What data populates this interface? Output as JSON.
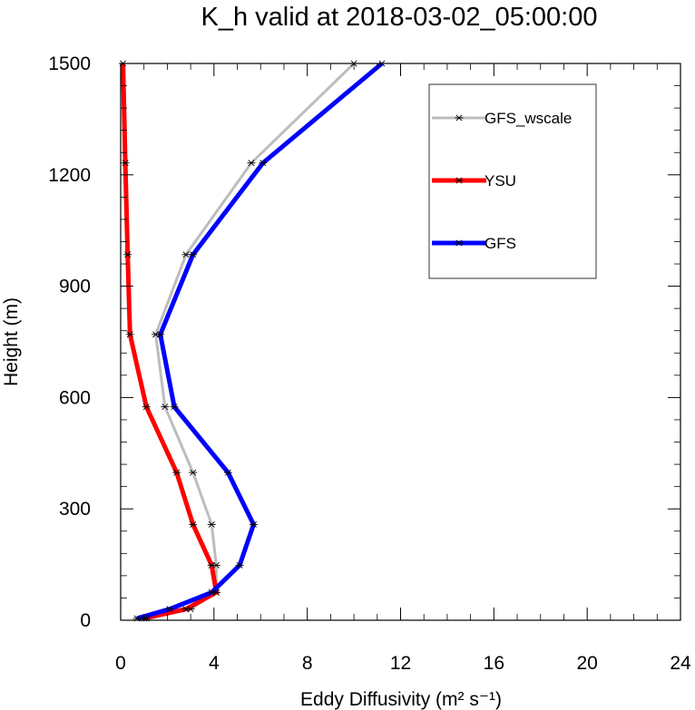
{
  "chart_data": {
    "type": "line",
    "title": "K_h valid at 2018-03-02_05:00:00",
    "xlabel": "Eddy Diffusivity (m² s⁻¹)",
    "ylabel": "Height (m)",
    "xlim": [
      0,
      24
    ],
    "ylim": [
      0,
      1500
    ],
    "xticks": [
      0,
      4,
      8,
      12,
      16,
      20,
      24
    ],
    "yticks": [
      0,
      300,
      600,
      900,
      1200,
      1500
    ],
    "grid": false,
    "legend_position": "top-right",
    "series": [
      {
        "name": "GFS_wscale",
        "color": "#bdbdbd",
        "marker": "asterisk",
        "points": [
          [
            1.1,
            5
          ],
          [
            3.0,
            30
          ],
          [
            4.1,
            75
          ],
          [
            4.1,
            148
          ],
          [
            3.9,
            258
          ],
          [
            3.1,
            398
          ],
          [
            1.9,
            575
          ],
          [
            1.5,
            770
          ],
          [
            2.8,
            985
          ],
          [
            5.6,
            1232
          ],
          [
            10.0,
            1500
          ]
        ]
      },
      {
        "name": "YSU",
        "color": "#ff0000",
        "marker": "asterisk",
        "points": [
          [
            1.0,
            5
          ],
          [
            2.8,
            30
          ],
          [
            4.1,
            75
          ],
          [
            3.9,
            148
          ],
          [
            3.1,
            258
          ],
          [
            2.4,
            398
          ],
          [
            1.1,
            575
          ],
          [
            0.4,
            770
          ],
          [
            0.3,
            985
          ],
          [
            0.2,
            1232
          ],
          [
            0.1,
            1500
          ]
        ]
      },
      {
        "name": "GFS",
        "color": "#0000ff",
        "marker": "asterisk",
        "points": [
          [
            0.7,
            5
          ],
          [
            2.1,
            30
          ],
          [
            3.9,
            75
          ],
          [
            5.1,
            148
          ],
          [
            5.7,
            258
          ],
          [
            4.6,
            398
          ],
          [
            2.3,
            575
          ],
          [
            1.7,
            770
          ],
          [
            3.1,
            985
          ],
          [
            6.1,
            1232
          ],
          [
            11.2,
            1500
          ]
        ]
      }
    ]
  }
}
